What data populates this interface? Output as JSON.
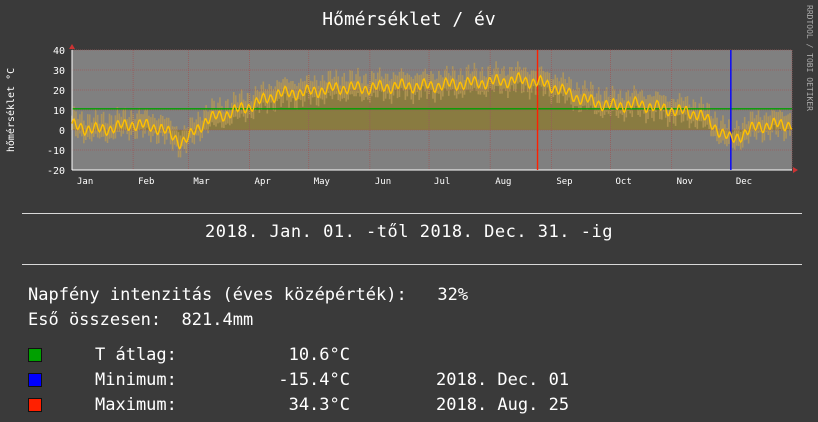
{
  "title": "Hőmérséklet / év",
  "side_label": "RRDTOOL / TOBI OETIKER",
  "colors": {
    "background": "#3a3a3a",
    "plot_bg": "#808080",
    "grid": "#9a5a5a",
    "avg_line": "#00a000",
    "min_marker": "#0000ff",
    "max_marker": "#ff2000",
    "area": "#8a7a3a",
    "daily_range": "#b89a55",
    "temperature": "#ffc000"
  },
  "chart_data": {
    "type": "area",
    "ylabel": "hőmérséklet °C",
    "ylim": [
      -20,
      40
    ],
    "yticks": [
      40,
      30,
      20,
      10,
      0,
      -10,
      -20
    ],
    "month_labels": [
      "Jan",
      "Feb",
      "Mar",
      "Apr",
      "May",
      "Jun",
      "Jul",
      "Aug",
      "Sep",
      "Oct",
      "Nov",
      "Dec"
    ],
    "average_line_value": 10.6,
    "min_marker_date": "2018-12-01",
    "max_marker_date": "2018-08-25",
    "series": [
      {
        "x": [
          "2018-01-01",
          "2018-01-15",
          "2018-02-01",
          "2018-02-15",
          "2018-02-25",
          "2018-03-01",
          "2018-03-10",
          "2018-03-20",
          "2018-04-01",
          "2018-04-15",
          "2018-05-01",
          "2018-05-15",
          "2018-06-01",
          "2018-06-15",
          "2018-07-01",
          "2018-07-15",
          "2018-08-01",
          "2018-08-15",
          "2018-08-25",
          "2018-09-01",
          "2018-09-15",
          "2018-10-01",
          "2018-10-15",
          "2018-11-01",
          "2018-11-15",
          "2018-12-01",
          "2018-12-15",
          "2018-12-31"
        ],
        "values": [
          2,
          0,
          3,
          1,
          -6,
          -4,
          5,
          8,
          12,
          18,
          19,
          21,
          21,
          22,
          22,
          23,
          24,
          25,
          24,
          22,
          16,
          12,
          13,
          10,
          8,
          -5,
          2,
          3
        ]
      }
    ]
  },
  "period": "2018. Jan. 01. -től   2018. Dec. 31. -ig",
  "sunshine": {
    "label": "Napfény intenzitás (éves középérték):",
    "value": "32%"
  },
  "rain": {
    "label": "Eső összesen:",
    "value": "821.4mm"
  },
  "stats": [
    {
      "label": "T átlag:",
      "value": "10.6°C",
      "date": "",
      "color": "#00a000"
    },
    {
      "label": "Minimum:",
      "value": "-15.4°C",
      "date": "2018. Dec. 01",
      "color": "#0000ff"
    },
    {
      "label": "Maximum:",
      "value": "34.3°C",
      "date": "2018. Aug. 25",
      "color": "#ff2000"
    }
  ]
}
